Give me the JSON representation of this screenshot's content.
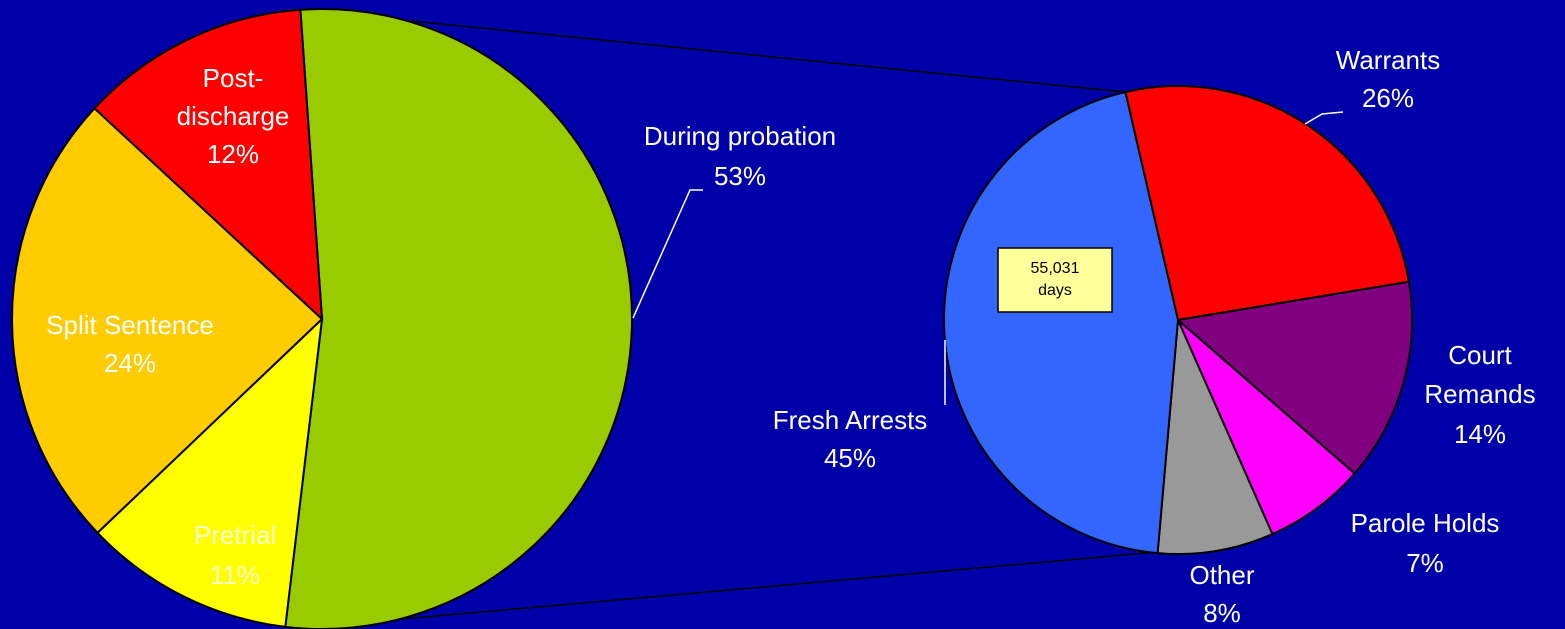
{
  "chart_data": [
    {
      "type": "pie",
      "categories": [
        "During probation",
        "Pretrial",
        "Split Sentence",
        "Post-discharge"
      ],
      "values": [
        53,
        11,
        24,
        12
      ],
      "value_labels": [
        "53%",
        "11%",
        "24%",
        "12%"
      ],
      "colors": [
        "#99cc00",
        "#ffff00",
        "#ffcc00",
        "#ff0000"
      ]
    },
    {
      "type": "pie",
      "categories": [
        "Warrants",
        "Court Remands",
        "Parole Holds",
        "Other",
        "Fresh Arrests"
      ],
      "values": [
        26,
        14,
        7,
        8,
        45
      ],
      "value_labels": [
        "26%",
        "14%",
        "7%",
        "8%",
        "45%"
      ],
      "colors": [
        "#ff0000",
        "#800080",
        "#ff00ff",
        "#999999",
        "#3366ff"
      ],
      "annotation": "55,031 days"
    }
  ]
}
